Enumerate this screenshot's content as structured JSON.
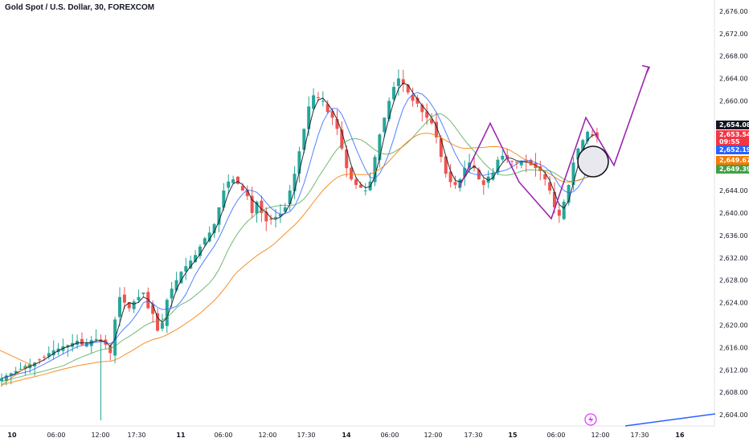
{
  "header": {
    "symbol_title": "Gold Spot / U.S. Dollar, 30, FOREXCOM"
  },
  "chart_data": {
    "type": "candlestick",
    "title": "Gold Spot / U.S. Dollar, 30, FOREXCOM",
    "ylim": [
      2602,
      2678
    ],
    "y_ticks": [
      "2,604.00",
      "2,608.00",
      "2,612.00",
      "2,616.00",
      "2,620.00",
      "2,624.00",
      "2,628.00",
      "2,632.00",
      "2,636.00",
      "2,640.00",
      "2,644.00",
      "2,648.00",
      "2,652.00",
      "2,656.00",
      "2,660.00",
      "2,664.00",
      "2,668.00",
      "2,672.00",
      "2,676.00"
    ],
    "x_ticks": [
      {
        "label": "10",
        "bold": true
      },
      {
        "label": "06:00",
        "bold": false
      },
      {
        "label": "12:00",
        "bold": false
      },
      {
        "label": "17:30",
        "bold": false
      },
      {
        "label": "11",
        "bold": true
      },
      {
        "label": "06:00",
        "bold": false
      },
      {
        "label": "12:00",
        "bold": false
      },
      {
        "label": "17:30",
        "bold": false
      },
      {
        "label": "14",
        "bold": true
      },
      {
        "label": "06:00",
        "bold": false
      },
      {
        "label": "12:00",
        "bold": false
      },
      {
        "label": "17:30",
        "bold": false
      },
      {
        "label": "15",
        "bold": true
      },
      {
        "label": "06:00",
        "bold": false
      },
      {
        "label": "12:00",
        "bold": false
      },
      {
        "label": "17:30",
        "bold": false
      },
      {
        "label": "16",
        "bold": true
      }
    ],
    "price_tags": [
      {
        "value": "2,654.08",
        "color": "#131722"
      },
      {
        "value": "2,653.54",
        "sub": "09:55",
        "color": "#f23645"
      },
      {
        "value": "2,652.19",
        "color": "#2962ff"
      },
      {
        "value": "2,649.67",
        "color": "#f57c00"
      },
      {
        "value": "2,649.39",
        "color": "#43a047"
      }
    ],
    "close_path": [
      2610.5,
      2611,
      2611.4,
      2611.8,
      2612.2,
      2612.7,
      2613,
      2613.3,
      2613.8,
      2614.3,
      2615,
      2615.5,
      2615.8,
      2616.2,
      2616.4,
      2616.8,
      2617.2,
      2616.5,
      2616.8,
      2617.3,
      2617.5,
      2617,
      2616.5,
      2615,
      2621,
      2625,
      2624,
      2623,
      2624.2,
      2625,
      2625.8,
      2623,
      2622,
      2619,
      2620.4,
      2624.5,
      2626.5,
      2628,
      2629.5,
      2630.5,
      2631.5,
      2632.5,
      2634,
      2635.5,
      2636.5,
      2638,
      2641,
      2644,
      2645.6,
      2646,
      2645.2,
      2644,
      2643,
      2640,
      2642,
      2640,
      2638.5,
      2638.8,
      2639.3,
      2639.8,
      2641,
      2644,
      2647,
      2651,
      2655,
      2659,
      2661,
      2660.5,
      2660,
      2658,
      2657,
      2655,
      2651.5,
      2648,
      2646,
      2645,
      2644.5,
      2644,
      2645.6,
      2650,
      2654,
      2657,
      2660,
      2662.5,
      2664,
      2663,
      2661.5,
      2660,
      2659.5,
      2658,
      2657,
      2656,
      2653.5,
      2650,
      2647,
      2645.5,
      2645,
      2646,
      2648,
      2649,
      2648,
      2646,
      2645,
      2646.5,
      2647.2,
      2649.5,
      2650.2,
      2649.8,
      2649.2,
      2649,
      2649.3,
      2649,
      2648.5,
      2648,
      2647.5,
      2646,
      2644,
      2641,
      2639.5,
      2642,
      2645,
      2649,
      2651.5,
      2653,
      2654.5,
      2654,
      2653.5
    ],
    "ma_series": [
      {
        "color": "#131722",
        "alpha": 0.9
      },
      {
        "color": "#2962ff",
        "alpha": 0.8
      },
      {
        "color": "#43a047",
        "alpha": 0.75
      },
      {
        "color": "#f57c00",
        "alpha": 0.85
      }
    ],
    "annotations": {
      "pattern_color": "#9c27b0",
      "forecast_color": "#2962ff"
    }
  }
}
